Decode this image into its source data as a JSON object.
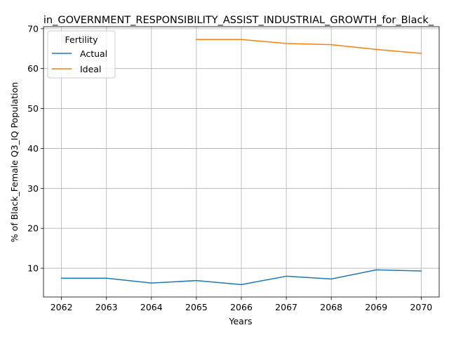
{
  "chart_data": {
    "type": "line",
    "title": "in_GOVERNMENT_RESPONSIBILITY_ASSIST_INDUSTRIAL_GROWTH_for_Black_",
    "xlabel": "Years",
    "ylabel": "% of Black_Female Q3_IQ Population",
    "x": [
      2062,
      2063,
      2064,
      2065,
      2066,
      2067,
      2068,
      2069,
      2070
    ],
    "xlim": [
      2061.6,
      2070.4
    ],
    "ylim": [
      2.8,
      70.5
    ],
    "yticks": [
      10,
      20,
      30,
      40,
      50,
      60,
      70
    ],
    "grid": true,
    "legend": {
      "title": "Fertility",
      "placement": "top-left"
    },
    "series": [
      {
        "name": "Actual",
        "color": "#1f77b4",
        "values": [
          7.5,
          7.5,
          6.3,
          6.9,
          5.9,
          8.0,
          7.3,
          9.6,
          9.3
        ]
      },
      {
        "name": "Ideal",
        "color": "#ff7f0e",
        "values": [
          null,
          null,
          null,
          67.3,
          67.3,
          66.3,
          66.0,
          64.8,
          63.8
        ]
      }
    ]
  }
}
